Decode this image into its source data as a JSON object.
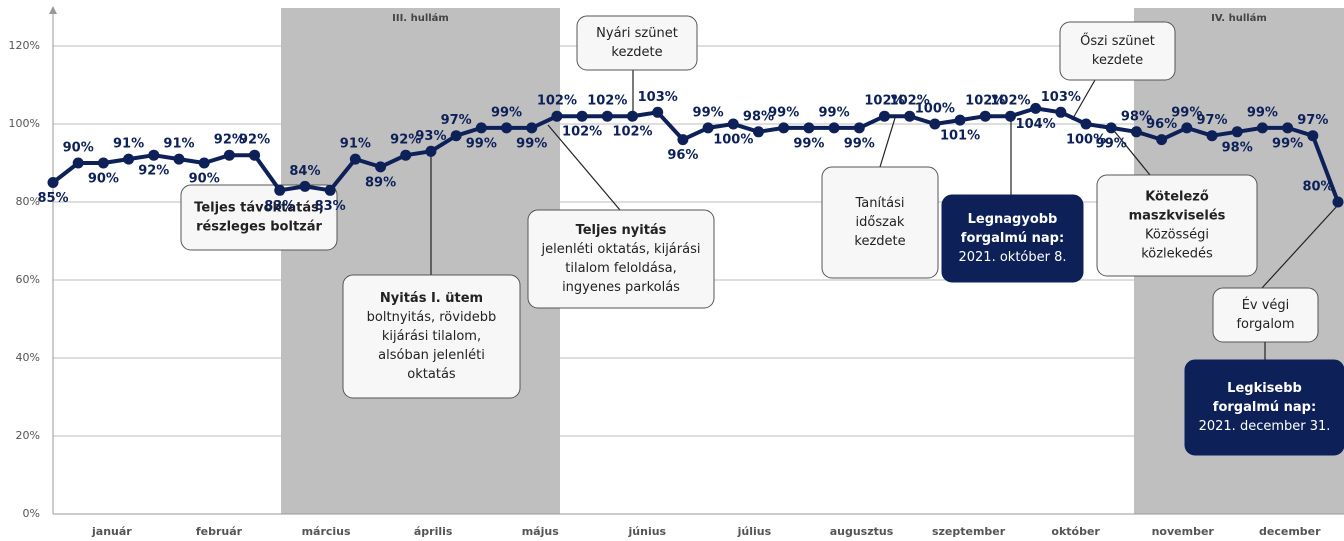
{
  "chart_data": {
    "type": "line",
    "color": "#0d2158",
    "values": [
      85,
      90,
      90,
      91,
      92,
      91,
      90,
      92,
      92,
      83,
      84,
      83,
      91,
      89,
      92,
      93,
      97,
      99,
      99,
      99,
      102,
      102,
      102,
      102,
      103,
      96,
      99,
      100,
      98,
      99,
      99,
      99,
      99,
      102,
      102,
      100,
      101,
      102,
      102,
      104,
      103,
      100,
      99,
      98,
      96,
      99,
      97,
      98,
      99,
      99,
      97,
      80
    ],
    "value_labels": [
      "85%",
      "90%",
      "90%",
      "91%",
      "92%",
      "91%",
      "90%",
      "92%",
      "92%",
      "83%",
      "84%",
      "83%",
      "91%",
      "89%",
      "92%",
      "93%",
      "97%",
      "99%",
      "99%",
      "99%",
      "102%",
      "102%",
      "102%",
      "102%",
      "103%",
      "96%",
      "99%",
      "100%",
      "98%",
      "99%",
      "99%",
      "99%",
      "99%",
      "102%",
      "102%",
      "100%",
      "101%",
      "102%",
      "102%",
      "104%",
      "103%",
      "100%",
      "99%",
      "98%",
      "96%",
      "99%",
      "97%",
      "98%",
      "99%",
      "99%",
      "97%",
      "80%"
    ],
    "months": [
      "január",
      "február",
      "március",
      "április",
      "május",
      "június",
      "július",
      "augusztus",
      "szeptember",
      "október",
      "november",
      "december"
    ],
    "ylim": [
      0,
      120
    ],
    "yticks": [
      {
        "value": 0,
        "label": "0%"
      },
      {
        "value": 20,
        "label": "20%"
      },
      {
        "value": 40,
        "label": "40%"
      },
      {
        "value": 60,
        "label": "60%"
      },
      {
        "value": 80,
        "label": "80%"
      },
      {
        "value": 100,
        "label": "100%"
      },
      {
        "value": 120,
        "label": "120%"
      }
    ],
    "grid": true,
    "waves": [
      "III. hullám",
      "IV. hullám"
    ],
    "annotations": [
      {
        "heading": [
          "Teljes távoktatás,",
          "részleges boltzár"
        ],
        "body": []
      },
      {
        "heading": [
          "Nyitás I. ütem"
        ],
        "body": [
          "boltnyitás, rövidebb",
          "kijárási tilalom,",
          "alsóban jelenléti",
          "oktatás"
        ]
      },
      {
        "heading": [
          "Teljes nyitás"
        ],
        "body": [
          "jelenléti oktatás, kijárási",
          "tilalom feloldása,",
          "ingyenes parkolás"
        ]
      },
      {
        "heading": [],
        "body": [
          "Nyári szünet",
          "kezdete"
        ]
      },
      {
        "heading": [],
        "body": [
          "Tanítási",
          "időszak",
          "kezdete"
        ]
      },
      {
        "heading": [
          "Legnagyobb",
          "forgalmú nap:"
        ],
        "body": [
          "2021. október 8."
        ]
      },
      {
        "heading": [],
        "body": [
          "Őszi szünet",
          "kezdete"
        ]
      },
      {
        "heading": [
          "Kötelező",
          "maszkviselés"
        ],
        "body": [
          "Közösségi",
          "közlekedés"
        ]
      },
      {
        "heading": [],
        "body": [
          "Év végi",
          "forgalom"
        ]
      },
      {
        "heading": [
          "Legkisebb",
          "forgalmú nap:"
        ],
        "body": [
          "2021. december 31."
        ]
      }
    ]
  }
}
